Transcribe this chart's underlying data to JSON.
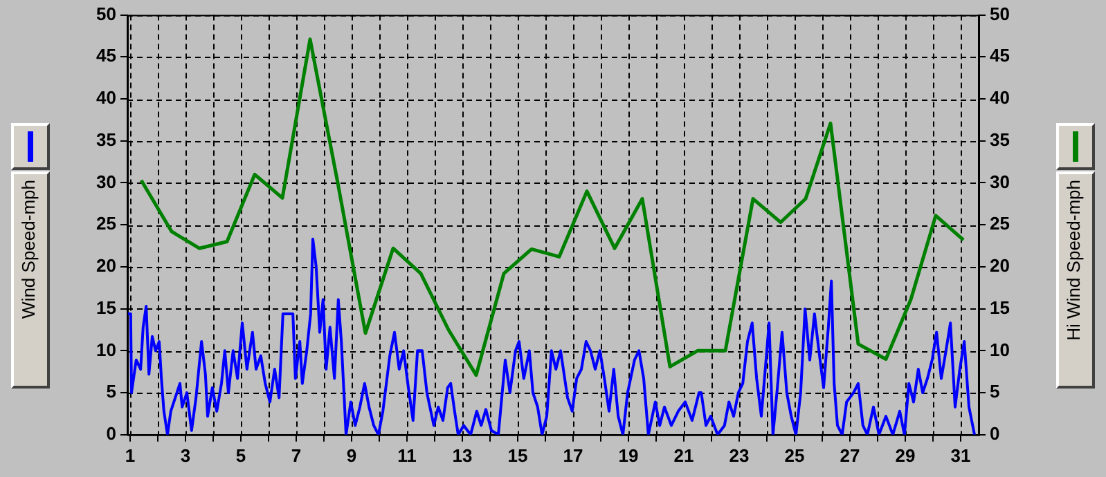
{
  "chart_data": {
    "type": "line",
    "xlim": [
      0.9,
      31.65
    ],
    "xticks": [
      1,
      {
        "value": 2,
        "label": null
      },
      3,
      {
        "value": 4,
        "label": null
      },
      5,
      {
        "value": 6,
        "label": null
      },
      7,
      {
        "value": 8,
        "label": null
      },
      9,
      {
        "value": 10,
        "label": null
      },
      11,
      {
        "value": 12,
        "label": null
      },
      13,
      {
        "value": 14,
        "label": null
      },
      15,
      {
        "value": 16,
        "label": null
      },
      17,
      {
        "value": 18,
        "label": null
      },
      19,
      {
        "value": 20,
        "label": null
      },
      21,
      {
        "value": 22,
        "label": null
      },
      23,
      {
        "value": 24,
        "label": null
      },
      25,
      {
        "value": 26,
        "label": null
      },
      27,
      {
        "value": 28,
        "label": null
      },
      29,
      {
        "value": 30,
        "label": null
      },
      31
    ],
    "ylim": [
      0,
      50
    ],
    "yticks": [
      0,
      5,
      10,
      15,
      20,
      25,
      30,
      35,
      40,
      45,
      50
    ],
    "y2lim": [
      0,
      50
    ],
    "y2ticks": [
      0,
      5,
      10,
      15,
      20,
      25,
      30,
      35,
      40,
      45,
      50
    ],
    "grid": true,
    "legend": "left",
    "marker": "none",
    "line_style": "solid",
    "series": [
      {
        "name": "Wind Speed-mph",
        "color": "#0000ff",
        "axis": "y",
        "x": [
          0.92,
          1.02,
          1.05,
          1.22,
          1.38,
          1.47,
          1.58,
          1.68,
          1.8,
          1.92,
          2.05,
          2.13,
          2.22,
          2.35,
          2.47,
          2.63,
          2.8,
          2.88,
          3.05,
          3.22,
          3.38,
          3.58,
          3.72,
          3.8,
          3.97,
          4.13,
          4.3,
          4.42,
          4.55,
          4.72,
          4.88,
          5.05,
          5.22,
          5.42,
          5.55,
          5.72,
          5.88,
          6.05,
          6.22,
          6.38,
          6.52,
          6.88,
          6.97,
          7.13,
          7.22,
          7.38,
          7.52,
          7.6,
          7.72,
          7.85,
          7.97,
          8.08,
          8.22,
          8.38,
          8.52,
          8.63,
          8.8,
          8.97,
          9.13,
          9.3,
          9.47,
          9.63,
          9.8,
          9.97,
          10.13,
          10.38,
          10.55,
          10.72,
          10.88,
          11.05,
          11.22,
          11.38,
          11.55,
          11.72,
          11.97,
          12.13,
          12.3,
          12.47,
          12.58,
          12.72,
          12.85,
          13.05,
          13.3,
          13.52,
          13.68,
          13.85,
          14.05,
          14.3,
          14.55,
          14.72,
          14.92,
          15.05,
          15.22,
          15.42,
          15.55,
          15.72,
          15.88,
          16.05,
          16.22,
          16.38,
          16.55,
          16.8,
          16.97,
          17.13,
          17.3,
          17.47,
          17.63,
          17.8,
          17.97,
          18.13,
          18.3,
          18.47,
          18.63,
          18.8,
          18.97,
          19.22,
          19.38,
          19.55,
          19.72,
          19.97,
          20.13,
          20.3,
          20.55,
          20.8,
          21.05,
          21.3,
          21.55,
          21.63,
          21.8,
          21.97,
          22.22,
          22.47,
          22.63,
          22.8,
          22.97,
          23.13,
          23.3,
          23.47,
          23.63,
          23.8,
          23.97,
          24.08,
          24.22,
          24.38,
          24.55,
          24.72,
          24.88,
          25.05,
          25.22,
          25.38,
          25.55,
          25.72,
          25.88,
          26.05,
          26.22,
          26.33,
          26.43,
          26.55,
          26.72,
          26.88,
          27.13,
          27.3,
          27.47,
          27.63,
          27.85,
          28.05,
          28.3,
          28.55,
          28.8,
          28.97,
          29.13,
          29.3,
          29.47,
          29.63,
          29.8,
          29.97,
          30.13,
          30.3,
          30.47,
          30.63,
          30.8,
          30.97,
          31.13,
          31.3,
          31.5
        ],
        "values": [
          14.4,
          14.4,
          5,
          8.9,
          7.8,
          12.8,
          15.3,
          7.2,
          11.7,
          10,
          11.1,
          6.7,
          2.8,
          0,
          2.8,
          4.4,
          6.1,
          3.3,
          5,
          0.5,
          4.4,
          11.1,
          7.2,
          2.2,
          5.6,
          2.8,
          6.1,
          10,
          5,
          10,
          6.7,
          13.3,
          7.8,
          12.2,
          7.8,
          9.4,
          6.1,
          3.9,
          7.8,
          4.4,
          14.4,
          14.4,
          6.7,
          11.1,
          6.1,
          10,
          14.4,
          23.3,
          20,
          12.2,
          16.1,
          7.8,
          12.8,
          6.7,
          16.1,
          11.1,
          0,
          3.9,
          1.1,
          3.3,
          6.1,
          3.3,
          1.1,
          0,
          2.8,
          9.4,
          12.2,
          7.8,
          10,
          5.6,
          1.7,
          10,
          10,
          5,
          1.1,
          3.3,
          1.7,
          5.6,
          6.1,
          2.8,
          0,
          1.1,
          0,
          2.8,
          1.1,
          3,
          0.5,
          0,
          8.9,
          5,
          10,
          11.1,
          6.7,
          10,
          5,
          3.3,
          0,
          2.2,
          10,
          7.8,
          10,
          4.4,
          2.8,
          6.7,
          7.8,
          11.1,
          10,
          7.8,
          10,
          6.7,
          2.8,
          7.8,
          2.2,
          0,
          5,
          8.9,
          10,
          6.7,
          0,
          3.9,
          1.1,
          3.3,
          1.1,
          2.8,
          3.9,
          1.7,
          5,
          5,
          1.1,
          2.2,
          0,
          1.1,
          3.9,
          2.2,
          5,
          6.1,
          11.1,
          13.3,
          6.7,
          2.2,
          8.9,
          13.3,
          0,
          5.6,
          12.2,
          5,
          2.2,
          0,
          5,
          15,
          8.9,
          14.4,
          10,
          5.6,
          12.8,
          18.3,
          6.1,
          1.1,
          0,
          3.9,
          5,
          6.1,
          1.1,
          0,
          3.3,
          0,
          2.2,
          0,
          2.8,
          0,
          6.1,
          3.9,
          7.8,
          5,
          6.7,
          8.9,
          12.2,
          6.7,
          10,
          13.3,
          3.3,
          7.8,
          11.1,
          3.3,
          0
        ]
      },
      {
        "name": "Hi Wind Speed-mph",
        "color": "#008000",
        "axis": "y2",
        "x": [
          1.4,
          2.5,
          3.5,
          4.5,
          5.5,
          6.5,
          7.5,
          8.5,
          9.5,
          10.5,
          11.5,
          12.5,
          13.5,
          14.5,
          15.5,
          16.5,
          17.5,
          18.5,
          19.5,
          20.5,
          21.5,
          22.5,
          23.5,
          24.5,
          25.4,
          26.3,
          27.3,
          28.3,
          29.2,
          30.1,
          31.1
        ],
        "values": [
          30.3,
          24.2,
          22.2,
          23,
          31,
          28.2,
          47.1,
          30,
          12.1,
          22.2,
          19.2,
          12.5,
          7.1,
          19.2,
          22.1,
          21.2,
          29,
          22.2,
          28.1,
          8.1,
          10,
          10,
          28.1,
          25.3,
          28.1,
          37.1,
          10.8,
          9,
          16.1,
          26.1,
          23.2
        ]
      }
    ]
  }
}
